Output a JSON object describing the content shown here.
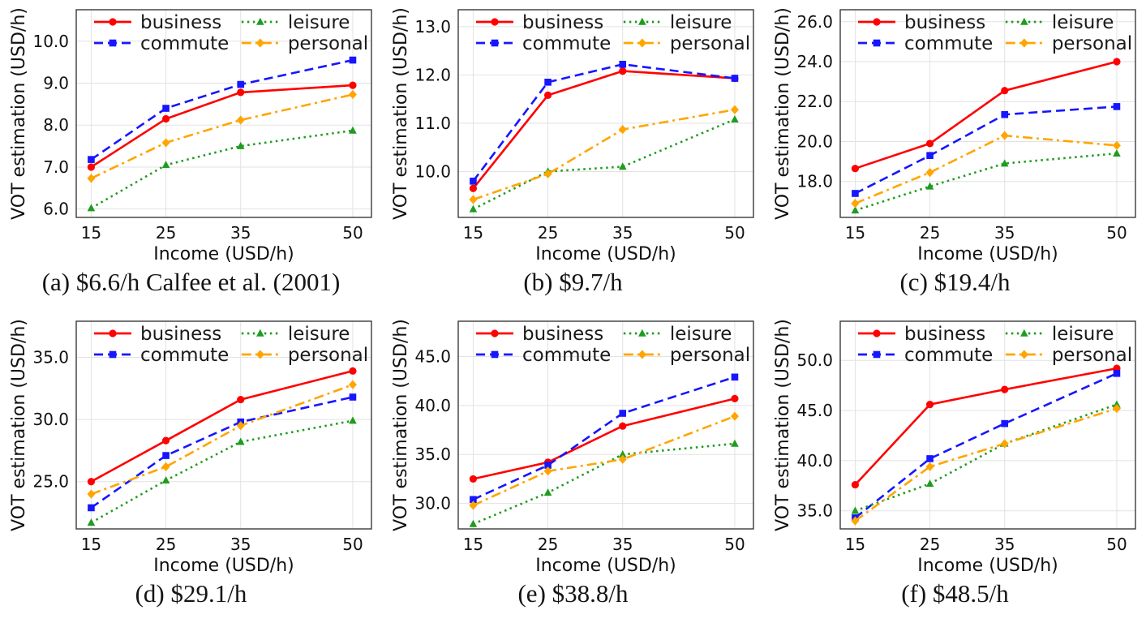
{
  "figure": {
    "xlabel": "Income (USD/h)",
    "ylabel": "VOT estimation (USD/h)",
    "legend": [
      "business",
      "commute",
      "leisure",
      "personal"
    ],
    "colors": {
      "business": "#ff0000",
      "commute": "#1616ff",
      "leisure": "#1f9c1f",
      "personal": "#ffa500"
    },
    "linestyles": {
      "business": "solid",
      "commute": "dashed",
      "leisure": "dotted",
      "personal": "dashdot"
    },
    "markers": {
      "business": "circle",
      "commute": "square",
      "leisure": "triangle",
      "personal": "diamond"
    },
    "grid_color": "#e2e2e2",
    "spine_color": "#3a3a3a",
    "text_color": "#111111"
  },
  "chart_data": [
    {
      "id": "a",
      "type": "line",
      "caption": "(a) $6.6/h Calfee et al. (2001)",
      "xlabel": "Income (USD/h)",
      "ylabel": "VOT estimation (USD/h)",
      "x": [
        15,
        25,
        35,
        50
      ],
      "xtick_labels": [
        "15",
        "25",
        "35",
        "50"
      ],
      "xlim": [
        13,
        52.5
      ],
      "ylim": [
        5.8,
        10.75
      ],
      "yticks": [
        6,
        7,
        8,
        9,
        10
      ],
      "ytick_labels": [
        "6.0",
        "7.0",
        "8.0",
        "9.0",
        "10.0"
      ],
      "series": [
        {
          "name": "business",
          "values": [
            7.0,
            8.15,
            8.78,
            8.95
          ]
        },
        {
          "name": "commute",
          "values": [
            7.18,
            8.4,
            8.97,
            9.55
          ]
        },
        {
          "name": "leisure",
          "values": [
            6.02,
            7.05,
            7.5,
            7.87
          ]
        },
        {
          "name": "personal",
          "values": [
            6.73,
            7.58,
            8.12,
            8.73
          ]
        }
      ]
    },
    {
      "id": "b",
      "type": "line",
      "caption": "(b) $9.7/h",
      "xlabel": "Income (USD/h)",
      "ylabel": "VOT estimation (USD/h)",
      "x": [
        15,
        25,
        35,
        50
      ],
      "xtick_labels": [
        "15",
        "25",
        "35",
        "50"
      ],
      "xlim": [
        13,
        52.5
      ],
      "ylim": [
        9.05,
        13.35
      ],
      "yticks": [
        10,
        11,
        12,
        13
      ],
      "ytick_labels": [
        "10.0",
        "11.0",
        "12.0",
        "13.0"
      ],
      "series": [
        {
          "name": "business",
          "values": [
            9.65,
            11.58,
            12.08,
            11.93
          ]
        },
        {
          "name": "commute",
          "values": [
            9.8,
            11.85,
            12.22,
            11.93
          ]
        },
        {
          "name": "leisure",
          "values": [
            9.22,
            10.0,
            10.1,
            11.08
          ]
        },
        {
          "name": "personal",
          "values": [
            9.42,
            9.95,
            10.87,
            11.28
          ]
        }
      ]
    },
    {
      "id": "c",
      "type": "line",
      "caption": "(c) $19.4/h",
      "xlabel": "Income (USD/h)",
      "ylabel": "VOT estimation (USD/h)",
      "x": [
        15,
        25,
        35,
        50
      ],
      "xtick_labels": [
        "15",
        "25",
        "35",
        "50"
      ],
      "xlim": [
        13,
        52.5
      ],
      "ylim": [
        16.2,
        26.6
      ],
      "yticks": [
        18,
        20,
        22,
        24,
        26
      ],
      "ytick_labels": [
        "18.0",
        "20.0",
        "22.0",
        "24.0",
        "26.0"
      ],
      "series": [
        {
          "name": "business",
          "values": [
            18.65,
            19.9,
            22.55,
            24.0
          ]
        },
        {
          "name": "commute",
          "values": [
            17.4,
            19.3,
            21.35,
            21.75
          ]
        },
        {
          "name": "leisure",
          "values": [
            16.55,
            17.75,
            18.9,
            19.4
          ]
        },
        {
          "name": "personal",
          "values": [
            16.9,
            18.45,
            20.3,
            19.8
          ]
        }
      ]
    },
    {
      "id": "d",
      "type": "line",
      "caption": "(d) $29.1/h",
      "xlabel": "Income (USD/h)",
      "ylabel": "VOT estimation (USD/h)",
      "x": [
        15,
        25,
        35,
        50
      ],
      "xtick_labels": [
        "15",
        "25",
        "35",
        "50"
      ],
      "xlim": [
        13,
        52.5
      ],
      "ylim": [
        21.2,
        37.9
      ],
      "yticks": [
        25,
        30,
        35
      ],
      "ytick_labels": [
        "25.0",
        "30.0",
        "35.0"
      ],
      "series": [
        {
          "name": "business",
          "values": [
            25.0,
            28.3,
            31.6,
            33.9
          ]
        },
        {
          "name": "commute",
          "values": [
            22.9,
            27.1,
            29.8,
            31.8
          ]
        },
        {
          "name": "leisure",
          "values": [
            21.7,
            25.1,
            28.2,
            29.9
          ]
        },
        {
          "name": "personal",
          "values": [
            24.0,
            26.2,
            29.5,
            32.8
          ]
        }
      ]
    },
    {
      "id": "e",
      "type": "line",
      "caption": "(e) $38.8/h",
      "xlabel": "Income (USD/h)",
      "ylabel": "VOT estimation (USD/h)",
      "x": [
        15,
        25,
        35,
        50
      ],
      "xtick_labels": [
        "15",
        "25",
        "35",
        "50"
      ],
      "xlim": [
        13,
        52.5
      ],
      "ylim": [
        27.4,
        48.6
      ],
      "yticks": [
        30,
        35,
        40,
        45
      ],
      "ytick_labels": [
        "30.0",
        "35.0",
        "40.0",
        "45.0"
      ],
      "series": [
        {
          "name": "business",
          "values": [
            32.5,
            34.2,
            37.9,
            40.7
          ]
        },
        {
          "name": "commute",
          "values": [
            30.4,
            33.9,
            39.2,
            42.9
          ]
        },
        {
          "name": "leisure",
          "values": [
            27.9,
            31.1,
            35.0,
            36.1
          ]
        },
        {
          "name": "personal",
          "values": [
            29.8,
            33.3,
            34.5,
            38.9
          ]
        }
      ]
    },
    {
      "id": "f",
      "type": "line",
      "caption": "(f) $48.5/h",
      "xlabel": "Income (USD/h)",
      "ylabel": "VOT estimation (USD/h)",
      "x": [
        15,
        25,
        35,
        50
      ],
      "xtick_labels": [
        "15",
        "25",
        "35",
        "50"
      ],
      "xlim": [
        13,
        52.5
      ],
      "ylim": [
        33.2,
        53.9
      ],
      "yticks": [
        35,
        40,
        45,
        50
      ],
      "ytick_labels": [
        "35.0",
        "40.0",
        "45.0",
        "50.0"
      ],
      "series": [
        {
          "name": "business",
          "values": [
            37.6,
            45.6,
            47.1,
            49.2
          ]
        },
        {
          "name": "commute",
          "values": [
            34.3,
            40.2,
            43.7,
            48.7
          ]
        },
        {
          "name": "leisure",
          "values": [
            35.0,
            37.7,
            41.7,
            45.6
          ]
        },
        {
          "name": "personal",
          "values": [
            34.0,
            39.4,
            41.7,
            45.2
          ]
        }
      ]
    }
  ]
}
